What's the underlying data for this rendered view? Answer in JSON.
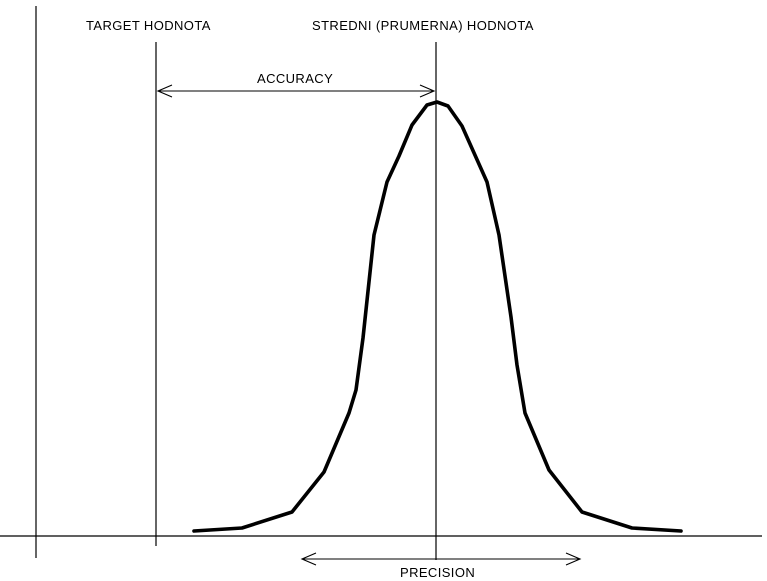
{
  "labels": {
    "target": "TARGET HODNOTA",
    "mean": "STREDNI (PRUMERNA) HODNOTA",
    "accuracy": "ACCURACY",
    "precision": "PRECISION"
  },
  "colors": {
    "line": "#000000",
    "background": "#ffffff"
  }
}
